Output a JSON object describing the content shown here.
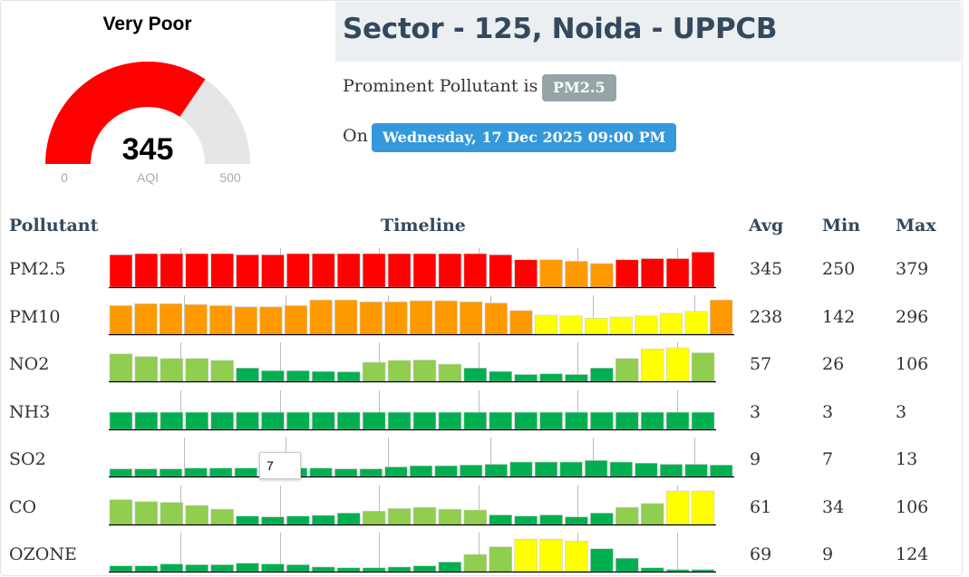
{
  "gauge": {
    "category": "Very Poor",
    "aqi_value": "345",
    "aqi_label": "AQI",
    "min_label": "0",
    "max_label": "500",
    "aqi_fraction": 0.69,
    "fill_color": "#ff0000",
    "track_color": "#e6e6e6"
  },
  "station": {
    "title": "Sector - 125, Noida - UPPCB",
    "prominent_text": "Prominent Pollutant is",
    "prominent_badge": "PM2.5",
    "on_text": "On",
    "date_badge": "Wednesday, 17 Dec 2025 09:00 PM"
  },
  "table": {
    "headers": {
      "pollutant": "Pollutant",
      "timeline": "Timeline",
      "avg": "Avg",
      "min": "Min",
      "max": "Max"
    },
    "tooltip": "7",
    "rows": [
      {
        "name": "PM2.5",
        "avg": "345",
        "min": "250",
        "max": "379",
        "bars": [
          0.85,
          0.88,
          0.88,
          0.88,
          0.88,
          0.85,
          0.85,
          0.88,
          0.88,
          0.88,
          0.88,
          0.88,
          0.88,
          0.88,
          0.88,
          0.85,
          0.72,
          0.72,
          0.68,
          0.62,
          0.72,
          0.75,
          0.75,
          0.92
        ],
        "colors": [
          "r",
          "r",
          "r",
          "r",
          "r",
          "r",
          "r",
          "r",
          "r",
          "r",
          "r",
          "r",
          "r",
          "r",
          "r",
          "r",
          "r",
          "o",
          "o",
          "o",
          "r",
          "r",
          "r",
          "r"
        ]
      },
      {
        "name": "PM10",
        "avg": "238",
        "min": "142",
        "max": "296",
        "bars": [
          0.75,
          0.8,
          0.8,
          0.78,
          0.75,
          0.72,
          0.72,
          0.75,
          0.9,
          0.9,
          0.85,
          0.85,
          0.88,
          0.88,
          0.85,
          0.82,
          0.62,
          0.5,
          0.48,
          0.42,
          0.45,
          0.48,
          0.55,
          0.6,
          0.9
        ],
        "colors": [
          "o",
          "o",
          "o",
          "o",
          "o",
          "o",
          "o",
          "o",
          "o",
          "o",
          "o",
          "o",
          "o",
          "o",
          "o",
          "o",
          "o",
          "y",
          "y",
          "y",
          "y",
          "y",
          "y",
          "y",
          "o"
        ]
      },
      {
        "name": "NO2",
        "avg": "57",
        "min": "26",
        "max": "106",
        "bars": [
          0.72,
          0.65,
          0.6,
          0.6,
          0.55,
          0.35,
          0.28,
          0.28,
          0.26,
          0.25,
          0.5,
          0.55,
          0.56,
          0.45,
          0.35,
          0.26,
          0.18,
          0.2,
          0.18,
          0.35,
          0.6,
          0.85,
          0.88,
          0.75
        ],
        "colors": [
          "lg",
          "lg",
          "lg",
          "lg",
          "lg",
          "g",
          "g",
          "g",
          "g",
          "g",
          "lg",
          "lg",
          "lg",
          "lg",
          "g",
          "g",
          "g",
          "g",
          "g",
          "g",
          "lg",
          "y",
          "y",
          "lg"
        ]
      },
      {
        "name": "NH3",
        "avg": "3",
        "min": "3",
        "max": "3",
        "bars": [
          0.45,
          0.45,
          0.45,
          0.45,
          0.45,
          0.45,
          0.45,
          0.45,
          0.45,
          0.45,
          0.45,
          0.45,
          0.45,
          0.45,
          0.45,
          0.45,
          0.45,
          0.45,
          0.45,
          0.45,
          0.45,
          0.45,
          0.45,
          0.45
        ],
        "colors": [
          "g",
          "g",
          "g",
          "g",
          "g",
          "g",
          "g",
          "g",
          "g",
          "g",
          "g",
          "g",
          "g",
          "g",
          "g",
          "g",
          "g",
          "g",
          "g",
          "g",
          "g",
          "g",
          "g",
          "g"
        ]
      },
      {
        "name": "SO2",
        "avg": "9",
        "min": "7",
        "max": "13",
        "bars": [
          0.2,
          0.2,
          0.2,
          0.22,
          0.22,
          0.22,
          0.22,
          0.22,
          0.22,
          0.2,
          0.2,
          0.25,
          0.28,
          0.28,
          0.3,
          0.32,
          0.38,
          0.38,
          0.38,
          0.42,
          0.38,
          0.35,
          0.32,
          0.32,
          0.3
        ],
        "colors": [
          "g",
          "g",
          "g",
          "g",
          "g",
          "g",
          "g",
          "g",
          "g",
          "g",
          "g",
          "g",
          "g",
          "g",
          "g",
          "g",
          "g",
          "g",
          "g",
          "g",
          "g",
          "g",
          "g",
          "g",
          "g"
        ]
      },
      {
        "name": "CO",
        "avg": "61",
        "min": "34",
        "max": "106",
        "bars": [
          0.65,
          0.6,
          0.58,
          0.5,
          0.4,
          0.22,
          0.2,
          0.22,
          0.24,
          0.3,
          0.35,
          0.42,
          0.45,
          0.4,
          0.38,
          0.25,
          0.22,
          0.25,
          0.2,
          0.3,
          0.45,
          0.55,
          0.88,
          0.88
        ],
        "colors": [
          "lg",
          "lg",
          "lg",
          "lg",
          "lg",
          "g",
          "g",
          "g",
          "g",
          "g",
          "lg",
          "lg",
          "lg",
          "lg",
          "lg",
          "g",
          "g",
          "g",
          "g",
          "g",
          "lg",
          "lg",
          "y",
          "y"
        ]
      },
      {
        "name": "OZONE",
        "avg": "69",
        "min": "9",
        "max": "124",
        "bars": [
          0.15,
          0.15,
          0.2,
          0.18,
          0.18,
          0.22,
          0.2,
          0.18,
          0.12,
          0.1,
          0.1,
          0.12,
          0.15,
          0.25,
          0.45,
          0.65,
          0.85,
          0.85,
          0.8,
          0.6,
          0.35,
          0.1,
          0.05,
          0.05
        ],
        "colors": [
          "g",
          "g",
          "g",
          "g",
          "g",
          "g",
          "g",
          "g",
          "g",
          "g",
          "g",
          "g",
          "g",
          "g",
          "lg",
          "lg",
          "y",
          "y",
          "y",
          "g",
          "g",
          "g",
          "g",
          "g"
        ]
      }
    ]
  },
  "palette": {
    "r": "#ff0000",
    "o": "#ff9900",
    "y": "#ffff00",
    "lg": "#8fce4e",
    "g": "#00b050",
    "grid": "#bbbbbb",
    "axis": "#000000"
  }
}
